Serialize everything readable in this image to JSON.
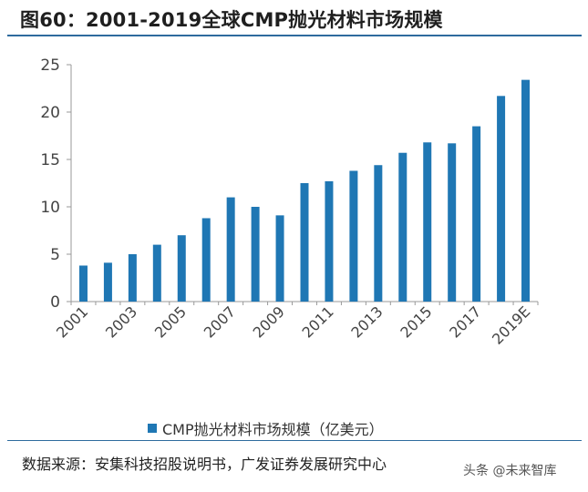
{
  "figure": {
    "title": "图60：2001-2019全球CMP抛光材料市场规模",
    "source": "数据来源：安集科技招股说明书，广发证券发展研究中心",
    "watermark": "头条 @未来智库"
  },
  "colors": {
    "bar": "#1f77b4",
    "rule": "#2e6b9e",
    "axis_text": "#444444"
  },
  "chart_data": {
    "type": "bar",
    "categories": [
      "2001",
      "2002",
      "2003",
      "2004",
      "2005",
      "2006",
      "2007",
      "2008",
      "2009",
      "2010",
      "2011",
      "2012",
      "2013",
      "2014",
      "2015",
      "2016",
      "2017",
      "2018",
      "2019E"
    ],
    "tick_labels": [
      "2001",
      "2003",
      "2005",
      "2007",
      "2009",
      "2011",
      "2013",
      "2015",
      "2017",
      "2019E"
    ],
    "series": [
      {
        "name": "CMP抛光材料市场规模（亿美元）",
        "values": [
          3.8,
          4.1,
          5.0,
          6.0,
          7.0,
          8.8,
          11.0,
          10.0,
          9.1,
          12.5,
          12.7,
          13.8,
          14.4,
          15.7,
          16.8,
          16.7,
          18.5,
          21.7,
          23.4
        ]
      }
    ],
    "ylim": [
      0,
      25
    ],
    "yticks": [
      0,
      5,
      10,
      15,
      20,
      25
    ],
    "grid": false,
    "legend_position": "bottom"
  }
}
